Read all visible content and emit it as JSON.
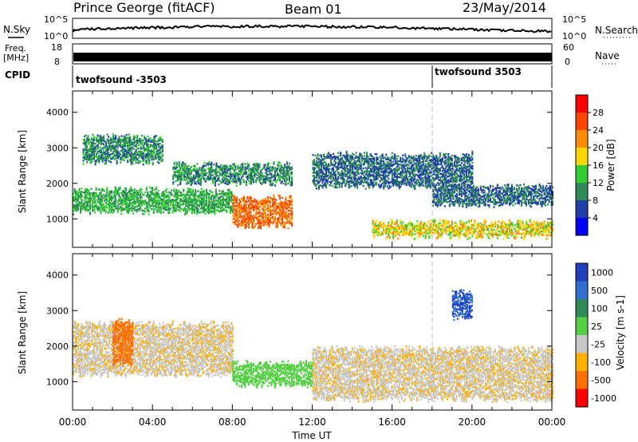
{
  "header": {
    "station": "Prince George (fitACF)",
    "beam": "Beam 01",
    "date": "23/May/2014"
  },
  "top_panels": {
    "nsky_label": "N.Sky",
    "nsky_ticks": [
      "10^5",
      "10^0"
    ],
    "nsearch_label": "N.Search",
    "nsearch_ticks": [
      "10^5",
      "10^0"
    ],
    "freq_label": "Freq.",
    "freq_unit": "[MHz]",
    "freq_ticks": [
      "18",
      "8"
    ],
    "nave_label": "Nave",
    "nave_ticks": [
      "60",
      "0"
    ],
    "cpid_label": "CPID",
    "cpid_segments": [
      {
        "label": "twofsound -3503",
        "start_hour": 0
      },
      {
        "label": "twofsound 3503",
        "start_hour": 18
      }
    ]
  },
  "chart_data": [
    {
      "type": "heatmap",
      "title": "",
      "xlabel": "Time UT",
      "ylabel": "Slant Range [km]",
      "xlim": [
        0,
        24
      ],
      "x_ticks": [
        "00:00",
        "04:00",
        "08:00",
        "12:00",
        "16:00",
        "20:00",
        "00:00"
      ],
      "ylim": [
        200,
        4600
      ],
      "y_ticks": [
        1000,
        2000,
        3000,
        4000
      ],
      "colorbar": {
        "label": "Power [dB]",
        "tick_labels": [
          "4",
          "8",
          "12",
          "16",
          "20",
          "24",
          "28"
        ],
        "colors": [
          "#0000ff",
          "#1e3ea8",
          "#2e8b57",
          "#32cd32",
          "#ffd700",
          "#ff8c00",
          "#ff4500",
          "#ff0000"
        ]
      },
      "scatter_echo_bands": [
        {
          "hours": [
            0,
            8
          ],
          "range_km": [
            1200,
            1800
          ],
          "power_db": 14
        },
        {
          "hours": [
            0.5,
            4.5
          ],
          "range_km": [
            2600,
            3300
          ],
          "power_db": 12
        },
        {
          "hours": [
            5,
            11
          ],
          "range_km": [
            2000,
            2500
          ],
          "power_db": 12
        },
        {
          "hours": [
            8,
            11
          ],
          "range_km": [
            800,
            1600
          ],
          "power_db": 26
        },
        {
          "hours": [
            12,
            20
          ],
          "range_km": [
            1900,
            2800
          ],
          "power_db": 10
        },
        {
          "hours": [
            15,
            24
          ],
          "range_km": [
            500,
            900
          ],
          "power_db": 20
        },
        {
          "hours": [
            18,
            24
          ],
          "range_km": [
            1400,
            1900
          ],
          "power_db": 10
        }
      ]
    },
    {
      "type": "heatmap",
      "title": "",
      "xlabel": "Time UT",
      "ylabel": "Slant Range [km]",
      "xlim": [
        0,
        24
      ],
      "x_ticks": [
        "00:00",
        "04:00",
        "08:00",
        "12:00",
        "16:00",
        "20:00",
        "00:00"
      ],
      "ylim": [
        200,
        4600
      ],
      "y_ticks": [
        1000,
        2000,
        3000,
        4000
      ],
      "colorbar": {
        "label": "Velocity [m s-1]",
        "tick_labels": [
          "1000",
          "500",
          "100",
          "25",
          "-25",
          "-100",
          "-500",
          "-1000"
        ],
        "colors": [
          "#1f3fbf",
          "#2e6fcf",
          "#2e8b57",
          "#55d044",
          "#c8c8c8",
          "#ffb000",
          "#ff7000",
          "#ff0000"
        ]
      },
      "scatter_echo_bands": [
        {
          "hours": [
            0,
            8
          ],
          "range_km": [
            1200,
            2600
          ],
          "velocity_ms": 0
        },
        {
          "hours": [
            8,
            12
          ],
          "range_km": [
            900,
            1500
          ],
          "velocity_ms": 150
        },
        {
          "hours": [
            2,
            3
          ],
          "range_km": [
            1500,
            2700
          ],
          "velocity_ms": -300
        },
        {
          "hours": [
            12,
            24
          ],
          "range_km": [
            500,
            1900
          ],
          "velocity_ms": 0
        },
        {
          "hours": [
            19,
            20
          ],
          "range_km": [
            2800,
            3500
          ],
          "velocity_ms": 700
        }
      ]
    }
  ],
  "colors": {
    "ground_scatter": "#c8c8c8",
    "axes": "#000000"
  }
}
